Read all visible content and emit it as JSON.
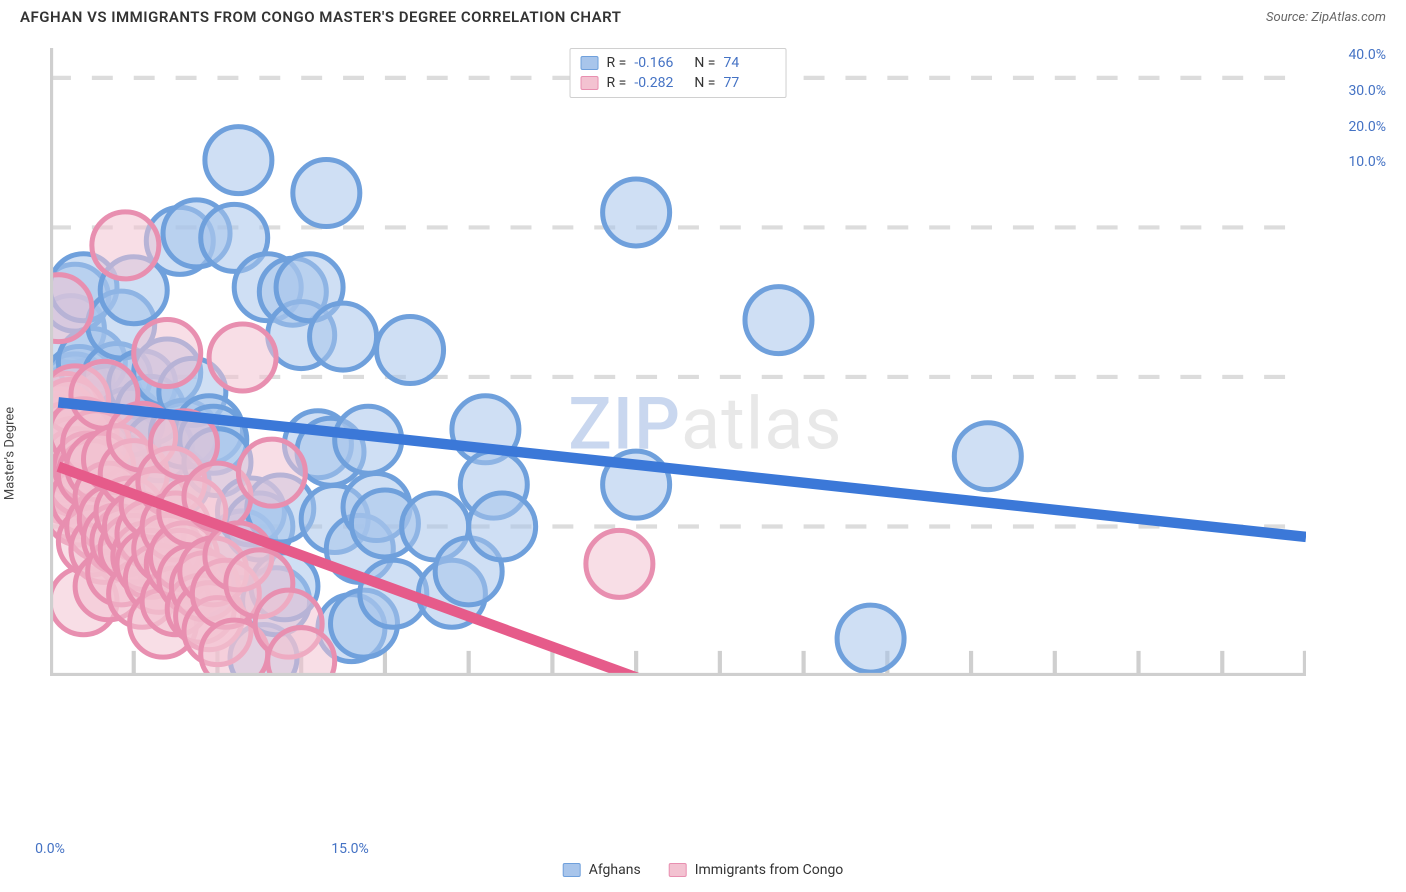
{
  "title": "AFGHAN VS IMMIGRANTS FROM CONGO MASTER'S DEGREE CORRELATION CHART",
  "source": "Source: ZipAtlas.com",
  "watermark": {
    "bold": "ZIP",
    "light": "atlas"
  },
  "chart": {
    "type": "scatter",
    "ylabel": "Master's Degree",
    "background_color": "#ffffff",
    "grid_color": "#dcdcdc",
    "axis_color": "#cfcfcf",
    "xlim": [
      0,
      15
    ],
    "ylim": [
      0,
      42
    ],
    "xticks": [
      0,
      5,
      10,
      15
    ],
    "xtick_labels": [
      "0.0%",
      "",
      "",
      "15.0%"
    ],
    "yticks": [
      10,
      20,
      30,
      40
    ],
    "ytick_labels": [
      "10.0%",
      "20.0%",
      "30.0%",
      "40.0%"
    ],
    "tick_fontsize": 14,
    "tick_color": "#4472c4",
    "marker_radius": 8,
    "marker_opacity": 0.55,
    "line_width": 2.5,
    "series": [
      {
        "name": "Afghans",
        "key": "afghans",
        "color_fill": "#a8c5eb",
        "color_stroke": "#6fa0dc",
        "line_color": "#3b78d8",
        "R": "-0.166",
        "N": "74",
        "trend": {
          "x1": 0.1,
          "y1": 18.3,
          "x2": 15,
          "y2": 9.3
        },
        "points": [
          [
            0.1,
            18.0
          ],
          [
            0.15,
            18.8
          ],
          [
            0.2,
            17.2
          ],
          [
            0.2,
            19.2
          ],
          [
            0.25,
            18.5
          ],
          [
            0.25,
            23.2
          ],
          [
            0.3,
            25.3
          ],
          [
            0.3,
            19.3
          ],
          [
            0.35,
            19.8
          ],
          [
            0.4,
            17.5
          ],
          [
            0.4,
            26.0
          ],
          [
            0.45,
            15.0
          ],
          [
            0.5,
            21.0
          ],
          [
            0.55,
            16.0
          ],
          [
            0.6,
            16.5
          ],
          [
            0.7,
            18.5
          ],
          [
            0.75,
            14.0
          ],
          [
            0.8,
            20.0
          ],
          [
            0.85,
            23.5
          ],
          [
            0.9,
            15.5
          ],
          [
            0.95,
            17.0
          ],
          [
            1.0,
            25.8
          ],
          [
            1.1,
            19.5
          ],
          [
            1.2,
            17.8
          ],
          [
            1.3,
            15.3
          ],
          [
            1.4,
            20.3
          ],
          [
            1.5,
            13.0
          ],
          [
            1.55,
            29.1
          ],
          [
            1.6,
            16.2
          ],
          [
            1.7,
            19.0
          ],
          [
            1.75,
            29.6
          ],
          [
            1.8,
            6.2
          ],
          [
            1.9,
            16.5
          ],
          [
            1.95,
            15.8
          ],
          [
            2.0,
            14.3
          ],
          [
            2.2,
            29.3
          ],
          [
            2.25,
            34.5
          ],
          [
            2.3,
            8.8
          ],
          [
            2.4,
            11.0
          ],
          [
            2.5,
            10.0
          ],
          [
            2.55,
            1.2
          ],
          [
            2.6,
            26.0
          ],
          [
            2.7,
            5.0
          ],
          [
            2.75,
            11.2
          ],
          [
            2.8,
            6.0
          ],
          [
            2.9,
            25.7
          ],
          [
            3.0,
            22.8
          ],
          [
            3.1,
            26.0
          ],
          [
            3.2,
            15.5
          ],
          [
            3.3,
            32.3
          ],
          [
            3.35,
            15.0
          ],
          [
            3.4,
            10.5
          ],
          [
            3.5,
            22.7
          ],
          [
            3.6,
            3.2
          ],
          [
            3.7,
            8.5
          ],
          [
            3.75,
            3.5
          ],
          [
            3.8,
            15.8
          ],
          [
            3.9,
            11.3
          ],
          [
            4.0,
            10.2
          ],
          [
            4.1,
            5.5
          ],
          [
            4.3,
            21.8
          ],
          [
            4.6,
            10.0
          ],
          [
            4.8,
            5.5
          ],
          [
            5.0,
            7.0
          ],
          [
            5.2,
            16.5
          ],
          [
            5.3,
            12.8
          ],
          [
            5.4,
            10.0
          ],
          [
            7.0,
            12.8
          ],
          [
            7.0,
            31.0
          ],
          [
            8.7,
            23.8
          ],
          [
            9.8,
            2.5
          ],
          [
            11.2,
            14.7
          ]
        ]
      },
      {
        "name": "Immigrants from Congo",
        "key": "congo",
        "color_fill": "#f3c2d1",
        "color_stroke": "#e88fb0",
        "line_color": "#e65b8a",
        "R": "-0.282",
        "N": "77",
        "trend": {
          "x1": 0.1,
          "y1": 14.0,
          "x2": 7.2,
          "y2": -0.5
        },
        "points": [
          [
            0.05,
            17.0
          ],
          [
            0.08,
            16.5
          ],
          [
            0.1,
            24.6
          ],
          [
            0.1,
            14.5
          ],
          [
            0.12,
            15.2
          ],
          [
            0.15,
            17.3
          ],
          [
            0.15,
            13.5
          ],
          [
            0.18,
            18.0
          ],
          [
            0.2,
            16.0
          ],
          [
            0.2,
            12.5
          ],
          [
            0.22,
            14.0
          ],
          [
            0.25,
            11.5
          ],
          [
            0.25,
            17.6
          ],
          [
            0.28,
            15.0
          ],
          [
            0.3,
            18.5
          ],
          [
            0.3,
            13.0
          ],
          [
            0.32,
            14.3
          ],
          [
            0.35,
            16.0
          ],
          [
            0.35,
            11.0
          ],
          [
            0.38,
            13.0
          ],
          [
            0.4,
            5.0
          ],
          [
            0.4,
            16.3
          ],
          [
            0.42,
            11.8
          ],
          [
            0.45,
            14.0
          ],
          [
            0.5,
            9.0
          ],
          [
            0.5,
            13.5
          ],
          [
            0.55,
            15.5
          ],
          [
            0.6,
            10.0
          ],
          [
            0.6,
            14.0
          ],
          [
            0.65,
            8.5
          ],
          [
            0.65,
            18.8
          ],
          [
            0.7,
            6.0
          ],
          [
            0.7,
            12.0
          ],
          [
            0.75,
            10.5
          ],
          [
            0.8,
            9.2
          ],
          [
            0.8,
            14.5
          ],
          [
            0.85,
            7.0
          ],
          [
            0.9,
            28.8
          ],
          [
            0.9,
            9.0
          ],
          [
            0.95,
            11.0
          ],
          [
            1.0,
            8.5
          ],
          [
            1.0,
            13.5
          ],
          [
            1.05,
            10.0
          ],
          [
            1.1,
            5.5
          ],
          [
            1.1,
            16.0
          ],
          [
            1.15,
            8.0
          ],
          [
            1.2,
            9.5
          ],
          [
            1.2,
            7.5
          ],
          [
            1.25,
            11.5
          ],
          [
            1.3,
            6.5
          ],
          [
            1.35,
            3.5
          ],
          [
            1.4,
            8.5
          ],
          [
            1.4,
            21.6
          ],
          [
            1.45,
            13.0
          ],
          [
            1.5,
            5.0
          ],
          [
            1.5,
            10.0
          ],
          [
            1.55,
            7.5
          ],
          [
            1.6,
            8.0
          ],
          [
            1.6,
            15.5
          ],
          [
            1.7,
            6.5
          ],
          [
            1.7,
            11.0
          ],
          [
            1.8,
            4.5
          ],
          [
            1.85,
            6.0
          ],
          [
            1.9,
            4.0
          ],
          [
            1.95,
            7.0
          ],
          [
            2.0,
            3.0
          ],
          [
            2.0,
            12.0
          ],
          [
            2.1,
            5.5
          ],
          [
            2.2,
            1.5
          ],
          [
            2.25,
            8.0
          ],
          [
            2.3,
            21.3
          ],
          [
            2.5,
            6.2
          ],
          [
            2.65,
            13.6
          ],
          [
            2.85,
            3.5
          ],
          [
            3.0,
            1.0
          ],
          [
            6.8,
            7.5
          ]
        ]
      }
    ],
    "legend_bottom": [
      {
        "key": "afghans",
        "label": "Afghans"
      },
      {
        "key": "congo",
        "label": "Immigrants from Congo"
      }
    ]
  }
}
